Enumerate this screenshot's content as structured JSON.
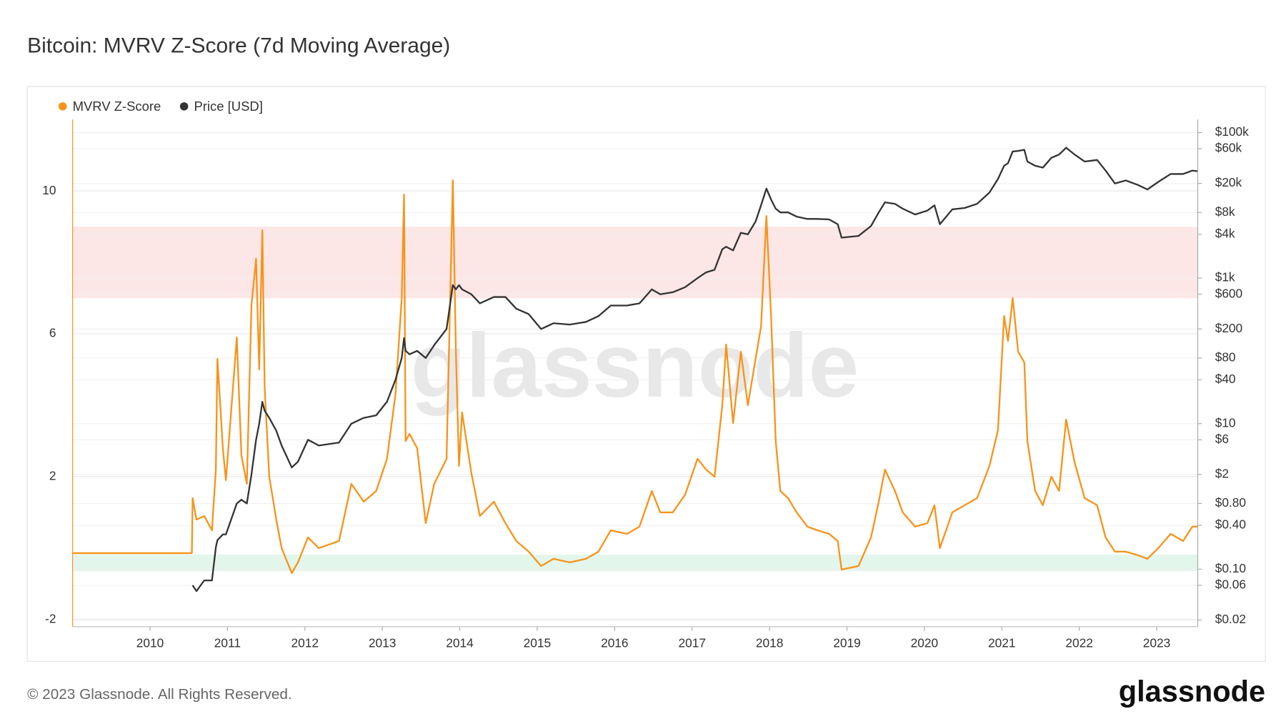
{
  "chart_data": {
    "type": "line",
    "title": "Bitcoin: MVRV Z-Score (7d Moving Average)",
    "watermark": "glassnode",
    "x": [
      2009.0,
      2010.54,
      2010.55,
      2010.6,
      2010.7,
      2010.8,
      2010.85,
      2010.87,
      2010.94,
      2010.98,
      2011.12,
      2011.18,
      2011.25,
      2011.31,
      2011.37,
      2011.41,
      2011.45,
      2011.48,
      2011.54,
      2011.63,
      2011.7,
      2011.83,
      2011.91,
      2012.04,
      2012.18,
      2012.44,
      2012.6,
      2012.76,
      2012.92,
      2013.06,
      2013.17,
      2013.25,
      2013.28,
      2013.3,
      2013.35,
      2013.45,
      2013.56,
      2013.67,
      2013.83,
      2013.91,
      2013.95,
      2013.99,
      2014.03,
      2014.15,
      2014.26,
      2014.44,
      2014.59,
      2014.73,
      2014.89,
      2015.05,
      2015.21,
      2015.42,
      2015.63,
      2015.79,
      2015.95,
      2016.16,
      2016.32,
      2016.48,
      2016.59,
      2016.75,
      2016.91,
      2017.07,
      2017.18,
      2017.29,
      2017.39,
      2017.44,
      2017.53,
      2017.63,
      2017.72,
      2017.82,
      2017.89,
      2017.96,
      2018.02,
      2018.08,
      2018.14,
      2018.24,
      2018.35,
      2018.49,
      2018.62,
      2018.77,
      2018.88,
      2018.93,
      2019.15,
      2019.31,
      2019.41,
      2019.49,
      2019.62,
      2019.72,
      2019.88,
      2020.04,
      2020.13,
      2020.2,
      2020.36,
      2020.52,
      2020.68,
      2020.84,
      2020.95,
      2021.03,
      2021.08,
      2021.14,
      2021.21,
      2021.29,
      2021.33,
      2021.43,
      2021.53,
      2021.64,
      2021.74,
      2021.83,
      2021.94,
      2022.07,
      2022.23,
      2022.34,
      2022.46,
      2022.6,
      2022.76,
      2022.88,
      2023.02,
      2023.18,
      2023.34,
      2023.46,
      2023.53
    ],
    "series": [
      {
        "name": "MVRV Z-Score",
        "color": "#f7931a",
        "axis": "y",
        "values": [
          -0.14,
          -0.14,
          1.4,
          0.8,
          0.9,
          0.5,
          2.2,
          5.3,
          2.8,
          1.9,
          5.9,
          2.6,
          1.8,
          6.8,
          8.1,
          5.0,
          8.9,
          4.5,
          2.0,
          0.8,
          0.0,
          -0.7,
          -0.4,
          0.3,
          0.0,
          0.2,
          1.8,
          1.3,
          1.6,
          2.5,
          4.3,
          7.0,
          9.9,
          3.0,
          3.2,
          2.8,
          0.7,
          1.8,
          2.5,
          10.3,
          5.5,
          2.3,
          3.8,
          2.1,
          0.9,
          1.3,
          0.7,
          0.2,
          -0.1,
          -0.5,
          -0.3,
          -0.4,
          -0.3,
          -0.1,
          0.5,
          0.4,
          0.6,
          1.6,
          1.0,
          1.0,
          1.5,
          2.5,
          2.2,
          2.0,
          4.0,
          5.7,
          3.5,
          5.5,
          4.0,
          5.3,
          6.2,
          9.3,
          6.5,
          3.0,
          1.6,
          1.4,
          1.0,
          0.6,
          0.5,
          0.4,
          0.2,
          -0.6,
          -0.5,
          0.3,
          1.3,
          2.2,
          1.6,
          1.0,
          0.6,
          0.7,
          1.2,
          0.0,
          1.0,
          1.2,
          1.4,
          2.3,
          3.3,
          6.5,
          5.8,
          7.0,
          5.5,
          5.2,
          3.0,
          1.6,
          1.2,
          2.0,
          1.6,
          3.6,
          2.4,
          1.4,
          1.2,
          0.3,
          -0.1,
          -0.1,
          -0.2,
          -0.3,
          0.0,
          0.4,
          0.2,
          0.6,
          0.6
        ]
      },
      {
        "name": "Price [USD]",
        "color": "#333333",
        "axis": "y2",
        "values": [
          null,
          null,
          0.06,
          0.05,
          0.07,
          0.07,
          0.2,
          0.25,
          0.3,
          0.3,
          0.8,
          0.9,
          0.8,
          2,
          6,
          10,
          20,
          15,
          12,
          8,
          5,
          2.5,
          3,
          6,
          5,
          5.5,
          10,
          12,
          13,
          20,
          40,
          80,
          150,
          100,
          90,
          100,
          80,
          120,
          200,
          800,
          700,
          800,
          700,
          600,
          450,
          550,
          550,
          380,
          320,
          200,
          240,
          230,
          250,
          300,
          420,
          420,
          450,
          700,
          600,
          640,
          750,
          1000,
          1200,
          1300,
          2500,
          2700,
          2400,
          4200,
          4000,
          6000,
          10000,
          17000,
          12000,
          9000,
          8000,
          8000,
          7000,
          6500,
          6500,
          6400,
          5500,
          3600,
          3800,
          5200,
          8000,
          11000,
          10500,
          9000,
          7500,
          8500,
          10000,
          5500,
          8800,
          9200,
          10500,
          15000,
          23000,
          35000,
          38000,
          55000,
          56000,
          58000,
          40000,
          35000,
          33000,
          45000,
          50000,
          62000,
          50000,
          40000,
          42000,
          30000,
          20000,
          22000,
          19000,
          16500,
          21000,
          27000,
          27000,
          30000,
          29500
        ]
      }
    ],
    "xlim": [
      2009.0,
      2023.53
    ],
    "xticks": [
      2010,
      2011,
      2012,
      2013,
      2014,
      2015,
      2016,
      2017,
      2018,
      2019,
      2020,
      2021,
      2022,
      2023
    ],
    "ylim": [
      -2.2,
      12
    ],
    "yticks": [
      -2,
      2,
      6,
      10
    ],
    "y2lim": [
      0.0162,
      151000
    ],
    "y2scale": "log",
    "y2ticks": [
      {
        "value": 100000,
        "label": "$100k"
      },
      {
        "value": 60000,
        "label": "$60k"
      },
      {
        "value": 20000,
        "label": "$20k"
      },
      {
        "value": 8000,
        "label": "$8k"
      },
      {
        "value": 4000,
        "label": "$4k"
      },
      {
        "value": 1000,
        "label": "$1k"
      },
      {
        "value": 600,
        "label": "$600"
      },
      {
        "value": 200,
        "label": "$200"
      },
      {
        "value": 80,
        "label": "$80"
      },
      {
        "value": 40,
        "label": "$40"
      },
      {
        "value": 10,
        "label": "$10"
      },
      {
        "value": 6,
        "label": "$6"
      },
      {
        "value": 2,
        "label": "$2"
      },
      {
        "value": 0.8,
        "label": "$0.80"
      },
      {
        "value": 0.4,
        "label": "$0.40"
      },
      {
        "value": 0.1,
        "label": "$0.10"
      },
      {
        "value": 0.06,
        "label": "$0.06"
      },
      {
        "value": 0.02,
        "label": "$0.02"
      }
    ],
    "bands": [
      {
        "from": 7,
        "to": 9,
        "color": "#fde6e6"
      },
      {
        "from": -0.64,
        "to": -0.18,
        "color": "#e3f6ec"
      }
    ],
    "grid": true,
    "legend": "top-left"
  },
  "footer": {
    "copyright": "© 2023 Glassnode. All Rights Reserved.",
    "logo": "glassnode"
  }
}
